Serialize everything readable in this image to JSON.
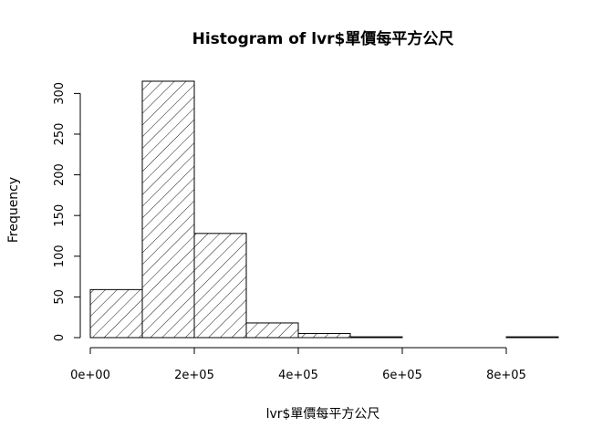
{
  "chart_data": {
    "type": "bar",
    "title": "Histogram of lvr$單價每平方公尺",
    "xlabel": "lvr$單價每平方公尺",
    "ylabel": "Frequency",
    "bins": [
      {
        "from": 0,
        "to": 100000,
        "count": 59
      },
      {
        "from": 100000,
        "to": 200000,
        "count": 315
      },
      {
        "from": 200000,
        "to": 300000,
        "count": 128
      },
      {
        "from": 300000,
        "to": 400000,
        "count": 18
      },
      {
        "from": 400000,
        "to": 500000,
        "count": 5
      },
      {
        "from": 500000,
        "to": 600000,
        "count": 1
      },
      {
        "from": 600000,
        "to": 700000,
        "count": 0
      },
      {
        "from": 700000,
        "to": 800000,
        "count": 0
      },
      {
        "from": 800000,
        "to": 900000,
        "count": 1
      }
    ],
    "xlim": [
      0,
      900000
    ],
    "ylim": [
      0,
      315
    ],
    "x_ticks": [
      {
        "value": 0,
        "label": "0e+00"
      },
      {
        "value": 200000,
        "label": "2e+05"
      },
      {
        "value": 400000,
        "label": "4e+05"
      },
      {
        "value": 600000,
        "label": "6e+05"
      },
      {
        "value": 800000,
        "label": "8e+05"
      }
    ],
    "y_ticks": [
      {
        "value": 0,
        "label": "0"
      },
      {
        "value": 50,
        "label": "50"
      },
      {
        "value": 100,
        "label": "100"
      },
      {
        "value": 150,
        "label": "150"
      },
      {
        "value": 200,
        "label": "200"
      },
      {
        "value": 250,
        "label": "250"
      },
      {
        "value": 300,
        "label": "300"
      }
    ],
    "fill": "diagonal-hatch",
    "grid": false,
    "colors": {
      "stroke": "#000000",
      "background": "#ffffff"
    }
  }
}
